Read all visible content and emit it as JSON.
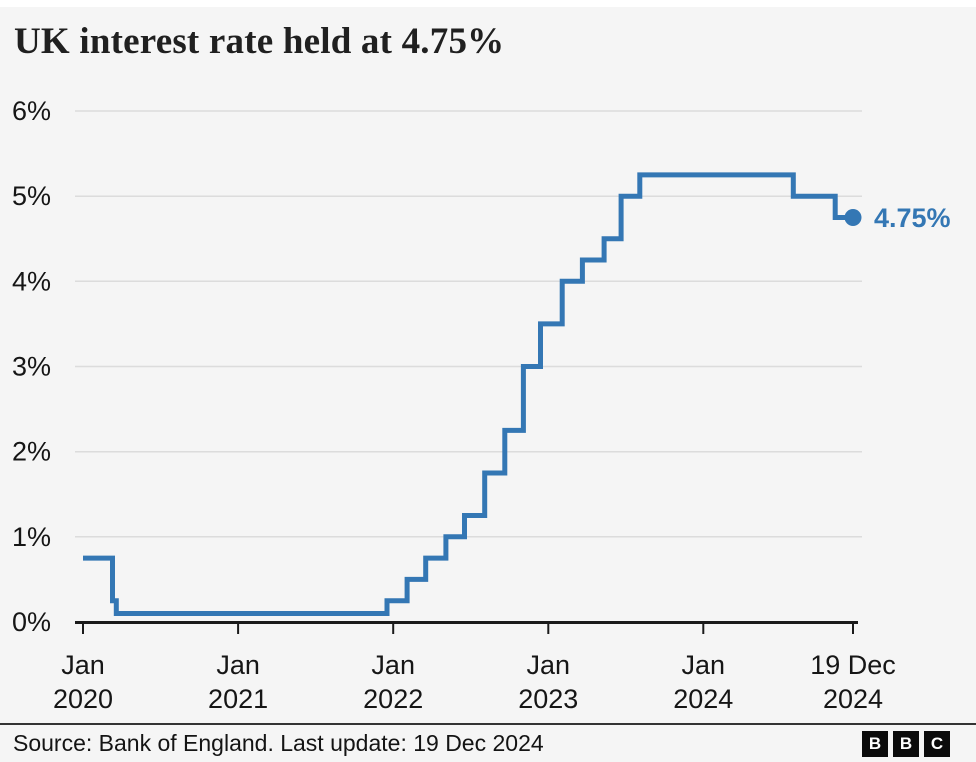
{
  "title": "UK interest rate held at 4.75%",
  "colors": {
    "background": "#f5f5f5",
    "line": "#3477b4",
    "gridline": "#dcdcdc",
    "axis": "#1a1a1a",
    "text": "#161616",
    "end_label": "#3477b4"
  },
  "chart_data": {
    "type": "line",
    "line_style": "step-after",
    "title": "UK interest rate held at 4.75%",
    "xlabel": "",
    "ylabel": "",
    "unit": "%",
    "ylim": [
      0,
      6
    ],
    "xlim": [
      2020.0,
      2024.965
    ],
    "grid": "horizontal-only",
    "y_ticks": [
      {
        "value": 0,
        "label": "0%"
      },
      {
        "value": 1,
        "label": "1%"
      },
      {
        "value": 2,
        "label": "2%"
      },
      {
        "value": 3,
        "label": "3%"
      },
      {
        "value": 4,
        "label": "4%"
      },
      {
        "value": 5,
        "label": "5%"
      },
      {
        "value": 6,
        "label": "6%"
      }
    ],
    "x_ticks": [
      {
        "t": 2020.0,
        "line1": "Jan",
        "line2": "2020"
      },
      {
        "t": 2021.0,
        "line1": "Jan",
        "line2": "2021"
      },
      {
        "t": 2022.0,
        "line1": "Jan",
        "line2": "2022"
      },
      {
        "t": 2023.0,
        "line1": "Jan",
        "line2": "2023"
      },
      {
        "t": 2024.0,
        "line1": "Jan",
        "line2": "2024"
      },
      {
        "t": 2024.965,
        "line1": "19 Dec",
        "line2": "2024"
      }
    ],
    "series": [
      {
        "name": "UK interest rate",
        "points": [
          [
            2020.0,
            0.75
          ],
          [
            2020.19,
            0.25
          ],
          [
            2020.215,
            0.1
          ],
          [
            2021.96,
            0.25
          ],
          [
            2022.09,
            0.5
          ],
          [
            2022.21,
            0.75
          ],
          [
            2022.34,
            1.0
          ],
          [
            2022.46,
            1.25
          ],
          [
            2022.59,
            1.75
          ],
          [
            2022.72,
            2.25
          ],
          [
            2022.84,
            3.0
          ],
          [
            2022.95,
            3.5
          ],
          [
            2023.09,
            4.0
          ],
          [
            2023.22,
            4.25
          ],
          [
            2023.36,
            4.5
          ],
          [
            2023.47,
            5.0
          ],
          [
            2023.59,
            5.25
          ],
          [
            2024.58,
            5.0
          ],
          [
            2024.85,
            4.75
          ],
          [
            2024.965,
            4.75
          ]
        ]
      }
    ],
    "end_annotation": {
      "label": "4.75%",
      "t": 2024.965,
      "value": 4.75
    },
    "legend": "none"
  },
  "footer": {
    "source_text": "Source: Bank of England. Last update: 19 Dec 2024",
    "logo": [
      "B",
      "B",
      "C"
    ]
  }
}
